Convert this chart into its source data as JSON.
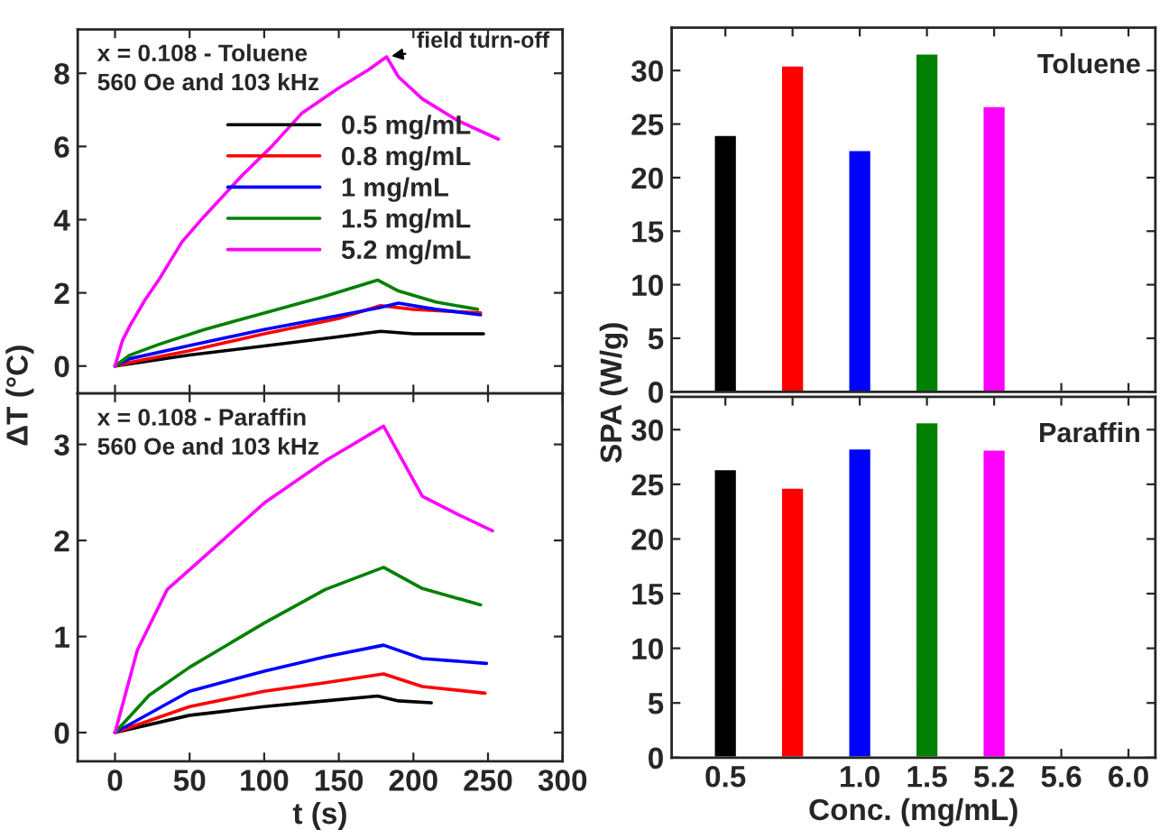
{
  "chart_data": [
    {
      "type": "line",
      "ylabel": "ΔT (°C)",
      "xlim": [
        -25,
        300
      ],
      "xticks": [
        0,
        50,
        100,
        150,
        200,
        250,
        300
      ],
      "ylim": [
        -0.75,
        9.2
      ],
      "yticks": [
        0,
        2,
        4,
        6,
        8
      ],
      "tick_labels": "y",
      "legend": "center right",
      "grid": false,
      "annotations": [
        "x = 0.108 - Toluene\n560 Oe and 103 kHz",
        {
          "text": "field turn-off",
          "x": 182,
          "y": 8.45
        }
      ],
      "series": [
        {
          "name": "0.5 mg/mL",
          "color": "#000000",
          "x": [
            0,
            50,
            100,
            150,
            178,
            200,
            247
          ],
          "values": [
            0,
            0.3,
            0.55,
            0.8,
            0.95,
            0.88,
            0.88
          ]
        },
        {
          "name": "0.8 mg/mL",
          "color": "#ff0000",
          "x": [
            0,
            10,
            50,
            100,
            150,
            178,
            200,
            245
          ],
          "values": [
            0,
            0.1,
            0.42,
            0.88,
            1.3,
            1.65,
            1.55,
            1.45
          ]
        },
        {
          "name": "1 mg/mL",
          "color": "#0000ff",
          "x": [
            0,
            10,
            50,
            100,
            150,
            178,
            190,
            215,
            245
          ],
          "values": [
            0,
            0.2,
            0.56,
            1.0,
            1.38,
            1.6,
            1.72,
            1.55,
            1.4
          ]
        },
        {
          "name": "1.5 mg/mL",
          "color": "#008000",
          "x": [
            0,
            10,
            30,
            60,
            100,
            140,
            176,
            190,
            215,
            243
          ],
          "values": [
            0,
            0.3,
            0.6,
            1.0,
            1.45,
            1.9,
            2.35,
            2.05,
            1.75,
            1.55
          ]
        },
        {
          "name": "5.2 mg/mL",
          "color": "#ff00ff",
          "x": [
            0,
            5,
            10,
            20,
            30,
            45,
            60,
            85,
            105,
            125,
            150,
            170,
            182,
            190,
            206,
            230,
            257
          ],
          "values": [
            0,
            0.7,
            1.1,
            1.8,
            2.4,
            3.4,
            4.1,
            5.2,
            6.0,
            6.9,
            7.6,
            8.1,
            8.45,
            7.9,
            7.3,
            6.7,
            6.2
          ]
        }
      ]
    },
    {
      "type": "bar",
      "ylabel": "SPA (W/g)",
      "categories": [
        "0.5",
        null,
        "1.0",
        "1.5",
        "5.2",
        "5.6",
        "6.0"
      ],
      "values": [
        24.0,
        30.5,
        22.6,
        31.6,
        26.7,
        null,
        null
      ],
      "colors": [
        "#000000",
        "#ff0000",
        "#0000ff",
        "#008000",
        "#ff00ff",
        "#ff00ff",
        "#ff00ff"
      ],
      "ylim": [
        0,
        34
      ],
      "yticks": [
        0,
        5,
        10,
        15,
        20,
        25,
        30
      ],
      "tick_labels": "y",
      "grid": false,
      "annotations": [
        "Toluene"
      ]
    },
    {
      "type": "line",
      "xlabel": "t (s)",
      "xlim": [
        -25,
        300
      ],
      "xticks": [
        0,
        50,
        100,
        150,
        200,
        250,
        300
      ],
      "ylim": [
        -0.3,
        3.53
      ],
      "yticks": [
        0,
        1,
        2,
        3
      ],
      "grid": false,
      "annotations": [
        "x = 0.108 - Paraffin\n560 Oe and 103 kHz"
      ],
      "series": [
        {
          "color": "#000000",
          "x": [
            0,
            50,
            100,
            141,
            176,
            190,
            212
          ],
          "values": [
            0,
            0.18,
            0.27,
            0.33,
            0.38,
            0.33,
            0.31
          ]
        },
        {
          "color": "#ff0000",
          "x": [
            0,
            50,
            100,
            141,
            180,
            206,
            248
          ],
          "values": [
            0,
            0.27,
            0.43,
            0.52,
            0.61,
            0.48,
            0.41
          ]
        },
        {
          "color": "#0000ff",
          "x": [
            0,
            50,
            100,
            141,
            180,
            206,
            249
          ],
          "values": [
            0,
            0.43,
            0.64,
            0.79,
            0.91,
            0.77,
            0.72
          ]
        },
        {
          "color": "#008000",
          "x": [
            0,
            23,
            50,
            100,
            141,
            180,
            206,
            245
          ],
          "values": [
            0,
            0.39,
            0.68,
            1.14,
            1.49,
            1.72,
            1.5,
            1.33
          ]
        },
        {
          "color": "#ff00ff",
          "x": [
            0,
            15,
            35,
            64,
            100,
            141,
            180,
            206,
            230,
            253
          ],
          "values": [
            0,
            0.86,
            1.49,
            1.89,
            2.39,
            2.83,
            3.19,
            2.46,
            2.27,
            2.1
          ]
        }
      ]
    },
    {
      "type": "bar",
      "xlabel": "Conc. (mg/mL)",
      "categories": [
        "0.5",
        null,
        "1.0",
        "1.5",
        "5.2",
        "5.6",
        "6.0"
      ],
      "values": [
        26.4,
        24.7,
        28.3,
        30.7,
        28.2,
        null,
        null
      ],
      "colors": [
        "#000000",
        "#ff0000",
        "#0000ff",
        "#008000",
        "#ff00ff",
        "#ff00ff",
        "#ff00ff"
      ],
      "ylim": [
        0,
        33
      ],
      "yticks": [
        0,
        5,
        10,
        15,
        20,
        25,
        30
      ],
      "grid": false,
      "annotations": [
        "Paraffin"
      ]
    }
  ]
}
